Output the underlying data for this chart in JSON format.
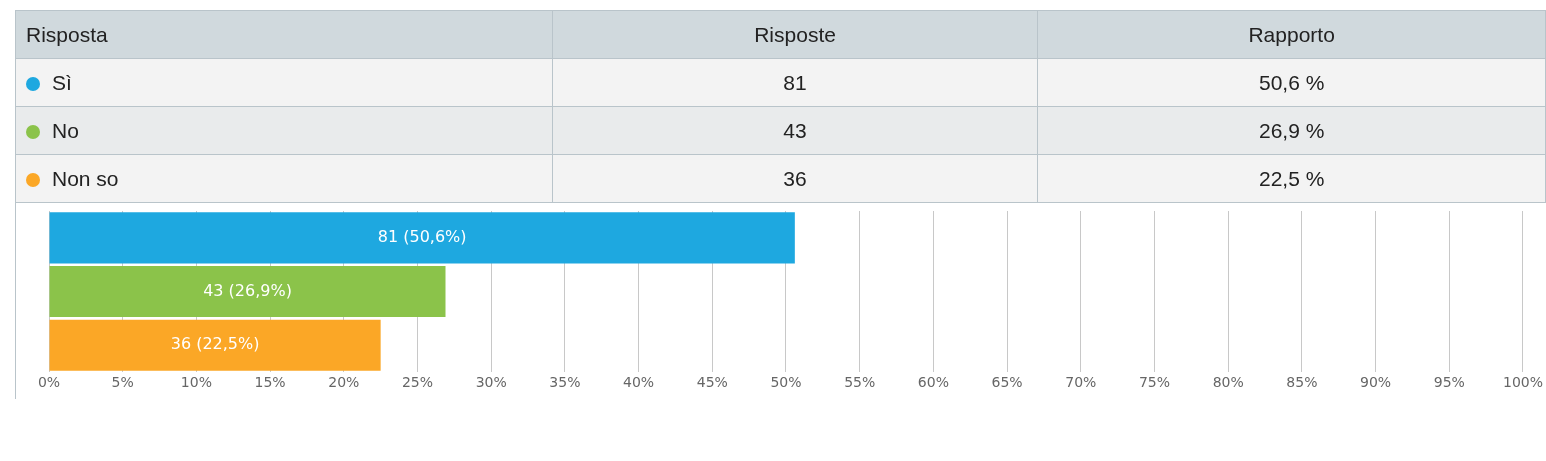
{
  "chart_data": [
    {
      "type": "other",
      "data_labels": true,
      "legend_title": "Risposta",
      "categories": [
        "Sì",
        "No",
        "Non so"
      ],
      "colors": [
        "#1ea8e0",
        "#8bc34a",
        "#fba726"
      ],
      "series": [
        {
          "name": "Risposte",
          "colors": [
            "#f3f3f3",
            "#e9ebec",
            "#f3f3f3"
          ],
          "values": [
            81,
            43,
            36
          ]
        },
        {
          "name": "Rapporto",
          "colors": [
            "#f3f3f3",
            "#e9ebec",
            "#f3f3f3"
          ],
          "values": [
            50.6,
            26.9,
            22.5
          ],
          "value_labels": [
            "50,6 %",
            "26,9 %",
            "22,5 %"
          ]
        }
      ]
    },
    {
      "type": "bar",
      "orientation": "horizontal",
      "categories": [
        null,
        null,
        null
      ],
      "values": [
        50.6,
        26.9,
        22.5
      ],
      "colors": [
        "#1ea8e0",
        "#8bc34a",
        "#fba726"
      ],
      "value_labels": [
        "81 (50,6%)",
        "43 (26,9%)",
        "36 (22,5%)"
      ],
      "xlim": [
        0,
        100
      ],
      "xticks": [
        {
          "value": 0,
          "label": "0%"
        },
        {
          "value": 5,
          "label": "5%"
        },
        {
          "value": 10,
          "label": "10%"
        },
        {
          "value": 15,
          "label": "15%"
        },
        {
          "value": 20,
          "label": "20%"
        },
        {
          "value": 25,
          "label": "25%"
        },
        {
          "value": 30,
          "label": "30%"
        },
        {
          "value": 35,
          "label": "35%"
        },
        {
          "value": 40,
          "label": "40%"
        },
        {
          "value": 45,
          "label": "45%"
        },
        {
          "value": 50,
          "label": "50%"
        },
        {
          "value": 55,
          "label": "55%"
        },
        {
          "value": 60,
          "label": "60%"
        },
        {
          "value": 65,
          "label": "65%"
        },
        {
          "value": 70,
          "label": "70%"
        },
        {
          "value": 75,
          "label": "75%"
        },
        {
          "value": 80,
          "label": "80%"
        },
        {
          "value": 85,
          "label": "85%"
        },
        {
          "value": 90,
          "label": "90%"
        },
        {
          "value": 95,
          "label": "95%"
        },
        {
          "value": 100,
          "label": "100%"
        }
      ],
      "grid": "x",
      "tick_labels": "x"
    }
  ]
}
